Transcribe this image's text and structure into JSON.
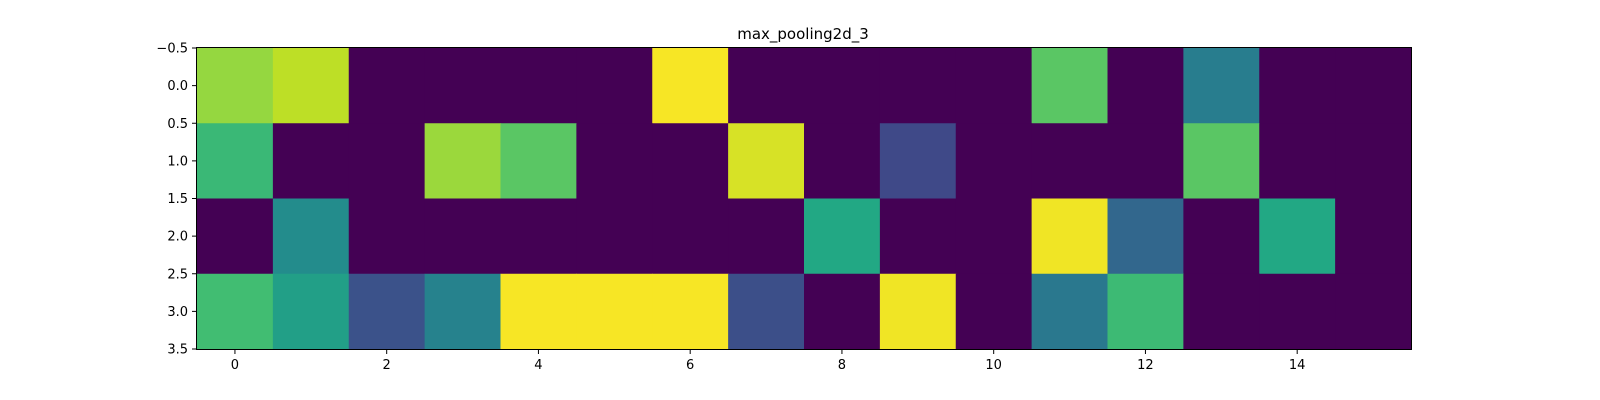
{
  "chart_data": {
    "type": "heatmap",
    "title": "max_pooling2d_3",
    "colormap": "viridis",
    "vmin": 0,
    "vmax": 1,
    "n_rows": 4,
    "n_cols": 16,
    "x_ticks": [
      0,
      2,
      4,
      6,
      8,
      10,
      12,
      14
    ],
    "x_tick_labels": [
      "0",
      "2",
      "4",
      "6",
      "8",
      "10",
      "12",
      "14"
    ],
    "y_ticks": [
      -0.5,
      0.0,
      0.5,
      1.0,
      1.5,
      2.0,
      2.5,
      3.0,
      3.5
    ],
    "y_tick_labels": [
      "−0.5",
      "0.0",
      "0.5",
      "1.0",
      "1.5",
      "2.0",
      "2.5",
      "3.0",
      "3.5"
    ],
    "xlim": [
      -0.5,
      15.5
    ],
    "ylim": [
      3.5,
      -0.5
    ],
    "grid": false,
    "values": [
      [
        0.84,
        0.9,
        0.0,
        0.0,
        0.0,
        0.0,
        0.99,
        0.0,
        0.0,
        0.0,
        0.0,
        0.74,
        0.0,
        0.42,
        0.0,
        0.0
      ],
      [
        0.67,
        0.0,
        0.0,
        0.85,
        0.74,
        0.0,
        0.0,
        0.94,
        0.0,
        0.22,
        0.0,
        0.0,
        0.0,
        0.74,
        0.0,
        0.0
      ],
      [
        0.0,
        0.48,
        0.0,
        0.0,
        0.0,
        0.0,
        0.0,
        0.0,
        0.6,
        0.0,
        0.0,
        0.98,
        0.33,
        0.0,
        0.6,
        0.0
      ],
      [
        0.69,
        0.56,
        0.25,
        0.44,
        0.99,
        0.99,
        0.99,
        0.24,
        0.0,
        0.98,
        0.0,
        0.4,
        0.68,
        0.0,
        0.0,
        0.0
      ]
    ]
  }
}
